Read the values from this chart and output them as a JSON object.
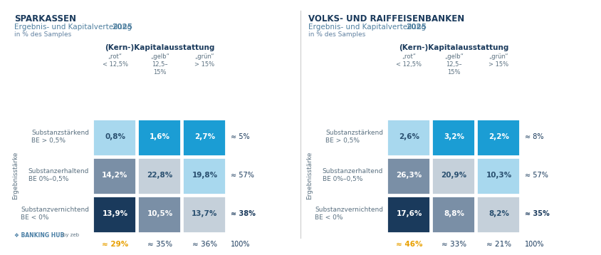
{
  "left_title1": "SPARKASSEN",
  "left_title2_plain": "Ergebnis- und Kapitalverteilung ",
  "left_title2_bold": "2025",
  "left_title3": "in % des Samples",
  "right_title1": "VOLKS- UND RAIFFEISENBANKEN",
  "right_title2_plain": "Ergebnis- und Kapitalverteilung ",
  "right_title2_bold": "2025",
  "right_title3": "in % des Samples",
  "col_header": "(Kern-)Kapitalausstattung",
  "col_labels": [
    "„rot“\n< 12,5%",
    "„gelb“\n12,5–\n15%",
    "„grün“\n> 15%"
  ],
  "row_labels": [
    "Substanzstärkend\nBE > 0,5%",
    "Substanzerhaltend\nBE 0%–0,5%",
    "Substanzvernichtend\nBE < 0%"
  ],
  "ergebnis_label": "Ergebnisstärke",
  "left_values": [
    [
      "0,8%",
      "1,6%",
      "2,7%"
    ],
    [
      "14,2%",
      "22,8%",
      "19,8%"
    ],
    [
      "13,9%",
      "10,5%",
      "13,7%"
    ]
  ],
  "right_values": [
    [
      "2,6%",
      "3,2%",
      "2,2%"
    ],
    [
      "26,3%",
      "20,9%",
      "10,3%"
    ],
    [
      "17,6%",
      "8,8%",
      "8,2%"
    ]
  ],
  "left_row_totals": [
    "≈ 5%",
    "≈ 57%",
    "≈ 38%"
  ],
  "right_row_totals": [
    "≈ 8%",
    "≈ 57%",
    "≈ 35%"
  ],
  "left_row_totals_bold": [
    false,
    false,
    true
  ],
  "right_row_totals_bold": [
    false,
    false,
    true
  ],
  "left_col_totals": [
    "≈ 29%",
    "≈ 35%",
    "≈ 36%",
    "100%"
  ],
  "right_col_totals": [
    "≈ 46%",
    "≈ 33%",
    "≈ 21%",
    "100%"
  ],
  "left_col_totals_highlight": [
    true,
    false,
    false,
    false
  ],
  "right_col_totals_highlight": [
    true,
    false,
    false,
    false
  ],
  "highlight_color": "#E8A000",
  "cell_colors": {
    "left": [
      [
        "#A8D8EE",
        "#1B9DD4",
        "#1B9DD4"
      ],
      [
        "#7A8FA6",
        "#C5D0DA",
        "#A8D8EE"
      ],
      [
        "#1A3A5C",
        "#7A8FA6",
        "#C5D0DA"
      ]
    ],
    "right": [
      [
        "#A8D8EE",
        "#1B9DD4",
        "#1B9DD4"
      ],
      [
        "#7A8FA6",
        "#C5D0DA",
        "#A8D8EE"
      ],
      [
        "#1A3A5C",
        "#7A8FA6",
        "#C5D0DA"
      ]
    ]
  },
  "cell_text_colors": {
    "left": [
      [
        "#2A5070",
        "#ffffff",
        "#ffffff"
      ],
      [
        "#ffffff",
        "#2A5070",
        "#2A5070"
      ],
      [
        "#ffffff",
        "#ffffff",
        "#2A5070"
      ]
    ],
    "right": [
      [
        "#2A5070",
        "#ffffff",
        "#ffffff"
      ],
      [
        "#ffffff",
        "#2A5070",
        "#2A5070"
      ],
      [
        "#ffffff",
        "#ffffff",
        "#2A5070"
      ]
    ]
  },
  "title_color": "#1A3A5C",
  "subtitle_color": "#5080A0",
  "small_text_color": "#6080A0",
  "text_color": "#5A7080",
  "banking_hub_color": "#4A7FA5",
  "background_color": "#ffffff",
  "divider_color": "#cccccc"
}
